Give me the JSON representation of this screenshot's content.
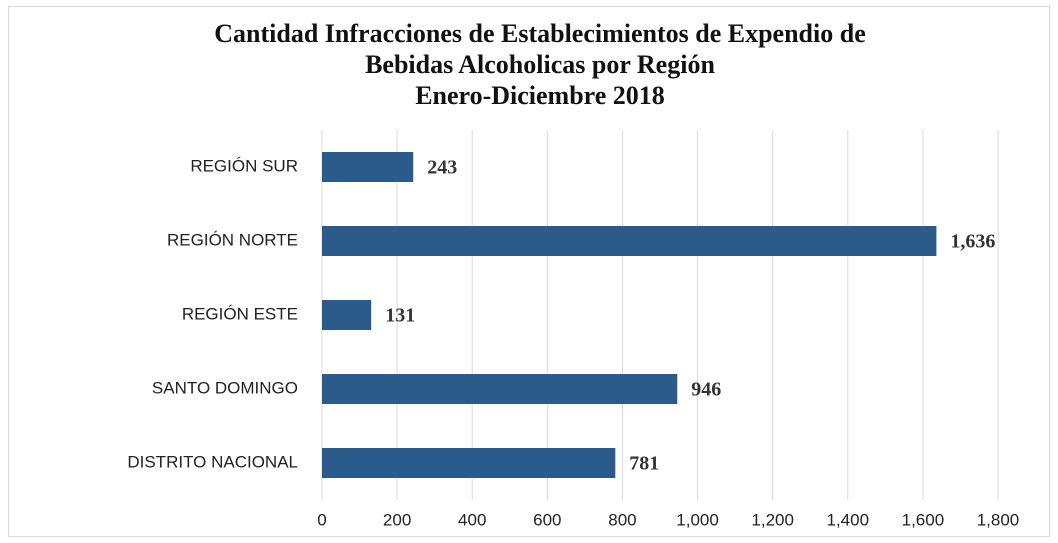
{
  "chart_data": {
    "type": "barh",
    "title": "Cantidad Infracciones de Establecimientos de Expendio de Bebidas Alcoholicas por Región",
    "subtitle": "Enero-Diciembre 2018",
    "categories": [
      "REGIÓN SUR",
      "REGIÓN NORTE",
      "REGIÓN ESTE",
      "SANTO DOMINGO",
      "DISTRITO NACIONAL"
    ],
    "values": [
      243,
      1636,
      131,
      946,
      781
    ],
    "value_labels": [
      "243",
      "1,636",
      "131",
      "946",
      "781"
    ],
    "color": "#2b5b8a",
    "xlim": [
      0,
      1800
    ],
    "xticks": [
      0,
      200,
      400,
      600,
      800,
      {
        "value": 1000,
        "label": "1,000"
      },
      {
        "value": 1200,
        "label": "1,200"
      },
      {
        "value": 1400,
        "label": "1,400"
      },
      {
        "value": 1600,
        "label": "1,600"
      },
      {
        "value": 1800,
        "label": "1,800"
      }
    ],
    "grid": true
  }
}
